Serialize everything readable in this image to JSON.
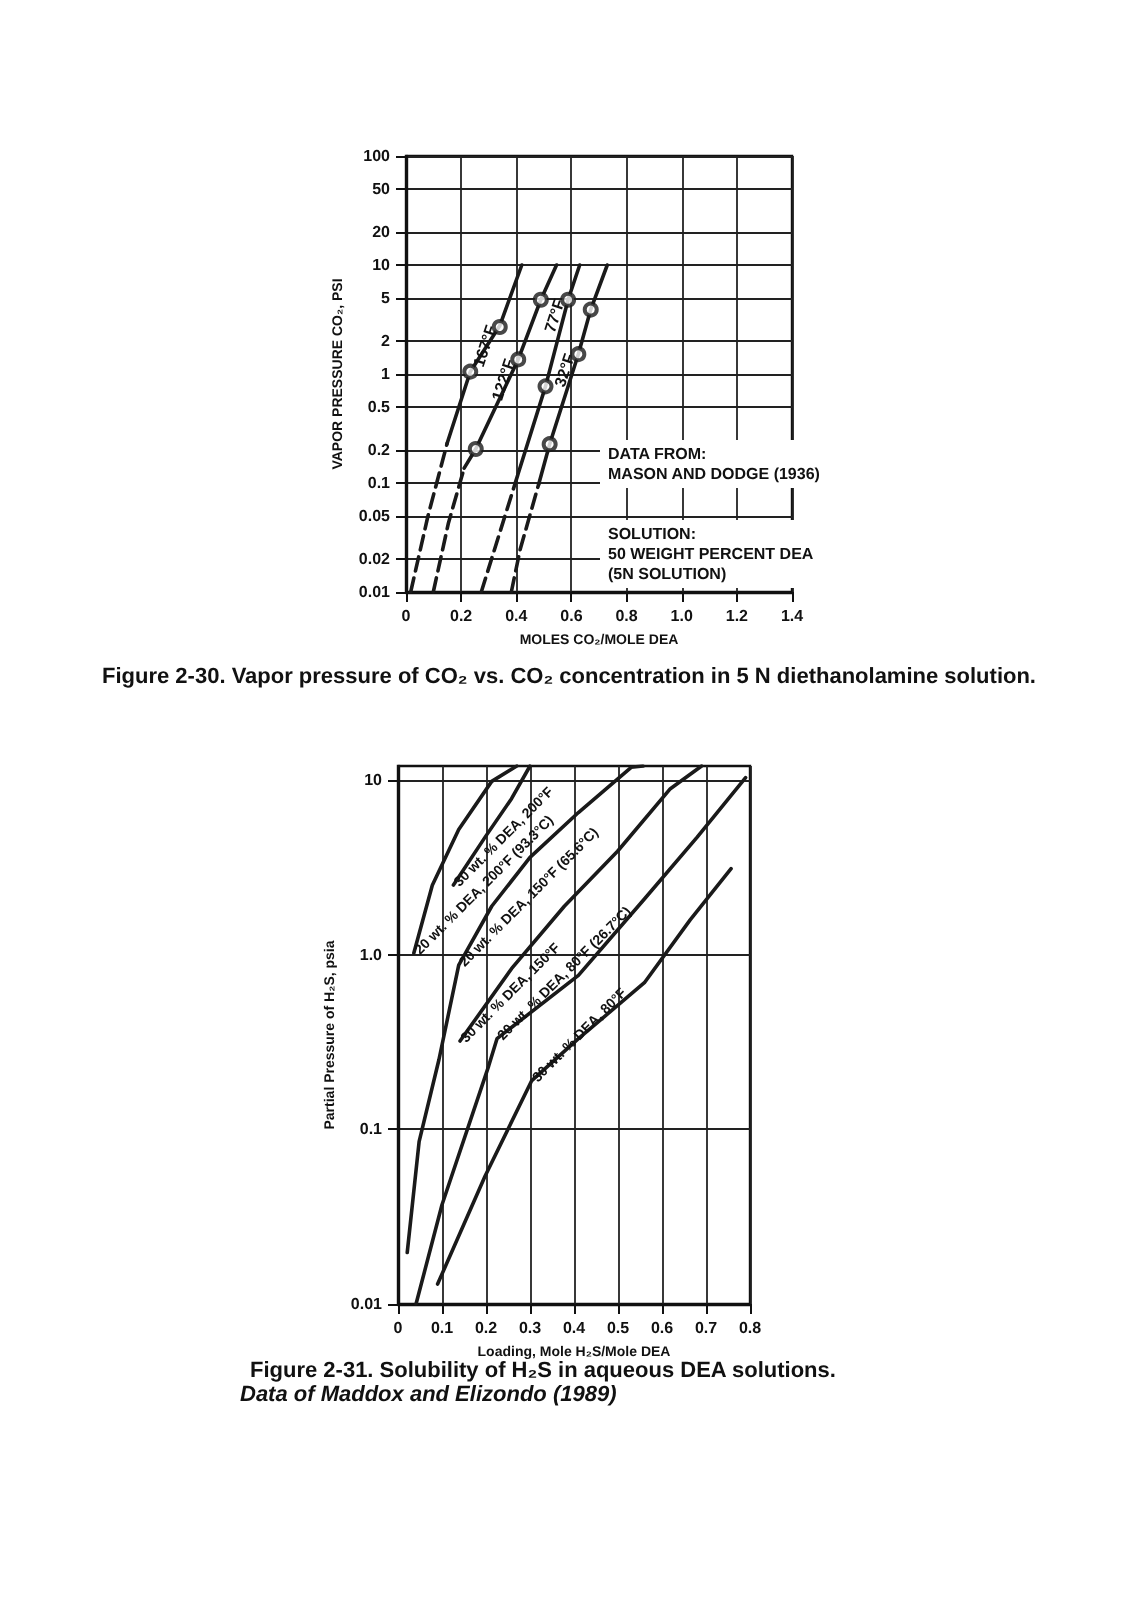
{
  "chart_data": [
    {
      "type": "line",
      "title": "Figure 2-30. Vapor pressure of CO₂ vs. CO₂ concentration in 5 N diethanolamine solution.",
      "xlabel": "MOLES CO₂/MOLE DEA",
      "ylabel": "VAPOR PRESSURE CO₂, PSI",
      "annotations": [
        "DATA FROM:\nMASON AND DODGE (1936)",
        "SOLUTION:\n50 WEIGHT PERCENT DEA\n(5N SOLUTION)"
      ],
      "xlim": [
        0,
        1.4
      ],
      "ylim": [
        0.01,
        100
      ],
      "xticks": [
        0,
        0.2,
        0.4,
        0.6,
        0.8,
        {
          "value": 1,
          "label": "1.0"
        },
        1.2,
        1.4
      ],
      "yticks": [
        0.01,
        0.02,
        0.05,
        0.1,
        0.2,
        0.5,
        1,
        2,
        5,
        10,
        20,
        50,
        100
      ],
      "log": "y",
      "grid": true,
      "series": [
        {
          "name": "167°F",
          "color": "#1a1a1a",
          "line_style": "solid",
          "x": [
            0.149,
            0.233,
            0.34,
            0.42
          ],
          "values": [
            0.23,
            1.05,
            2.77,
            10
          ]
        },
        {
          "color": "#1a1a1a",
          "line_style": "dashed",
          "x": [
            0.017,
            0.079,
            0.149
          ],
          "values": [
            0.01,
            0.049,
            0.23
          ]
        },
        {
          "type": "scatter",
          "marker": "circle",
          "color": "#1a1a1a",
          "x": [
            0.233,
            0.34
          ],
          "values": [
            1.05,
            2.7
          ]
        },
        {
          "name": "122°F",
          "color": "#1a1a1a",
          "line_style": "solid",
          "x": [
            0.211,
            0.253,
            0.407,
            0.489,
            0.546
          ],
          "values": [
            0.137,
            0.205,
            1.36,
            4.8,
            10
          ]
        },
        {
          "color": "#1a1a1a",
          "line_style": "dashed",
          "x": [
            0.099,
            0.154,
            0.211
          ],
          "values": [
            0.01,
            0.043,
            0.137
          ]
        },
        {
          "type": "scatter",
          "marker": "circle",
          "color": "#1a1a1a",
          "x": [
            0.253,
            0.407,
            0.489
          ],
          "values": [
            0.205,
            1.36,
            4.8
          ]
        },
        {
          "name": "77°F",
          "color": "#1a1a1a",
          "line_style": "solid",
          "x": [
            0.407,
            0.506,
            0.588,
            0.63
          ],
          "values": [
            0.122,
            0.77,
            4.8,
            10
          ]
        },
        {
          "color": "#1a1a1a",
          "line_style": "dashed",
          "x": [
            0.273,
            0.34,
            0.407
          ],
          "values": [
            0.01,
            0.035,
            0.122
          ]
        },
        {
          "type": "scatter",
          "marker": "circle",
          "color": "#1a1a1a",
          "x": [
            0.506,
            0.588
          ],
          "values": [
            0.77,
            4.8
          ]
        },
        {
          "name": "32°F",
          "color": "#1a1a1a",
          "line_style": "solid",
          "x": [
            0.481,
            0.521,
            0.625,
            0.67,
            0.73
          ],
          "values": [
            0.097,
            0.227,
            1.52,
            3.9,
            10
          ]
        },
        {
          "color": "#1a1a1a",
          "line_style": "dashed",
          "x": [
            0.382,
            0.414,
            0.481
          ],
          "values": [
            0.01,
            0.0245,
            0.097
          ]
        },
        {
          "type": "scatter",
          "marker": "circle",
          "color": "#1a1a1a",
          "x": [
            0.521,
            0.625,
            0.67
          ],
          "values": [
            0.227,
            1.52,
            3.9
          ]
        }
      ]
    },
    {
      "type": "line",
      "title": "Figure 2-31. Solubility of H₂S in aqueous DEA solutions.",
      "xlabel": "Loading, Mole H₂S/Mole DEA",
      "ylabel": "Partial Pressure of H₂S, psia",
      "annotations": [
        "Data of Maddox and Elizondo (1989)"
      ],
      "xlim": [
        0,
        0.8
      ],
      "ylim": [
        0.01,
        12
      ],
      "xticks": [
        0,
        0.1,
        0.2,
        0.3,
        0.4,
        0.5,
        0.6,
        0.7,
        0.8
      ],
      "yticks": [
        0.01,
        0.1,
        {
          "value": 1,
          "label": "1.0"
        },
        10
      ],
      "log": "y",
      "grid": true,
      "series": [
        {
          "name": "20 wt. % DEA, 200°F (93.3°C)",
          "color": "#1a1a1a",
          "line_style": "solid",
          "x": [
            0.036,
            0.078,
            0.138,
            0.213,
            0.27
          ],
          "values": [
            1.02,
            2.49,
            5.2,
            9.8,
            12
          ]
        },
        {
          "name": "30 wt. % DEA, 200°F",
          "color": "#1a1a1a",
          "line_style": "solid",
          "x": [
            0.126,
            0.198,
            0.258,
            0.3
          ],
          "values": [
            2.5,
            4.7,
            7.8,
            12
          ]
        },
        {
          "name": "20 wt. % DEA, 150°F (65.6°C)",
          "color": "#1a1a1a",
          "line_style": "solid",
          "x": [
            0.021,
            0.048,
            0.093,
            0.138,
            0.213,
            0.3,
            0.41,
            0.53,
            0.557
          ],
          "values": [
            0.0197,
            0.085,
            0.25,
            0.87,
            1.89,
            3.6,
            6.5,
            11.8,
            12
          ]
        },
        {
          "name": "30 wt. % DEA, 150°F",
          "color": "#1a1a1a",
          "line_style": "solid",
          "x": [
            0.141,
            0.258,
            0.378,
            0.499,
            0.619,
            0.69
          ],
          "values": [
            0.32,
            0.83,
            1.89,
            3.9,
            8.9,
            12
          ]
        },
        {
          "name": "20 wt. % DEA, 80°F (26.7°C)",
          "color": "#1a1a1a",
          "line_style": "solid",
          "x": [
            0.041,
            0.1,
            0.206,
            0.225,
            0.41,
            0.56,
            0.68,
            0.79
          ],
          "values": [
            0.01,
            0.037,
            0.23,
            0.33,
            0.76,
            2.08,
            4.7,
            10.3
          ]
        },
        {
          "name": "30 wt. % DEA, 80°F",
          "color": "#1a1a1a",
          "line_style": "solid",
          "x": [
            0.09,
            0.198,
            0.304,
            0.41,
            0.56,
            0.664,
            0.757
          ],
          "values": [
            0.013,
            0.054,
            0.19,
            0.33,
            0.69,
            1.58,
            3.1
          ]
        }
      ]
    }
  ]
}
